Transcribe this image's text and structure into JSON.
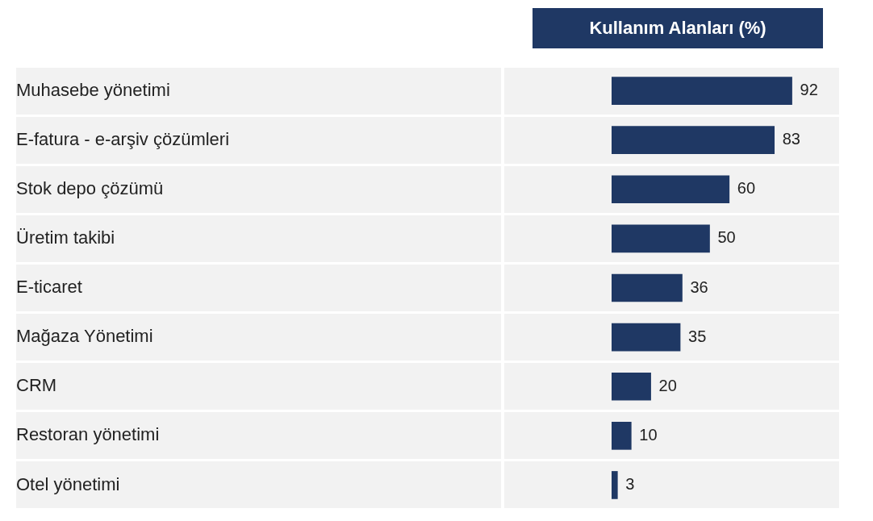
{
  "chart_data": {
    "type": "bar",
    "orientation": "horizontal",
    "title": "Kullanım Alanları (%)",
    "categories": [
      "Muhasebe yönetimi",
      "E-fatura - e-arşiv çözümleri",
      "Stok depo çözümü",
      "Üretim takibi",
      "E-ticaret",
      "Mağaza Yönetimi",
      "CRM",
      "Restoran yönetimi",
      "Otel yönetimi"
    ],
    "values": [
      92,
      83,
      60,
      50,
      36,
      35,
      20,
      10,
      3
    ],
    "color": "#1f3864",
    "data_labels": true,
    "legend": false,
    "tick_labels": "y"
  }
}
